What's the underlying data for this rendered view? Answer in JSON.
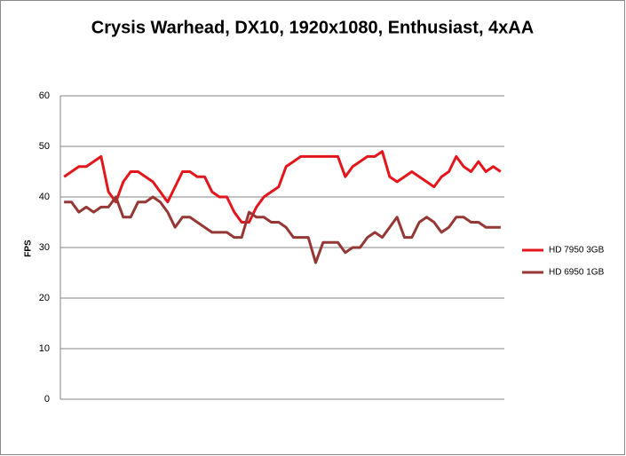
{
  "chart_data": {
    "type": "line",
    "title": "Crysis Warhead, DX10, 1920x1080, Enthusiast, 4xAA",
    "y_label": "FPS",
    "categories": [
      null,
      null,
      null,
      null,
      null,
      null,
      null,
      null,
      null,
      null,
      null,
      null,
      null,
      null,
      null,
      null,
      null,
      null,
      null,
      null,
      null,
      null,
      null,
      null,
      null,
      null,
      null,
      null,
      null,
      null,
      null,
      null,
      null,
      null,
      null,
      null,
      null,
      null,
      null,
      null,
      null,
      null,
      null,
      null,
      null,
      null,
      null,
      null,
      null,
      null,
      null,
      null,
      null,
      null,
      null,
      null,
      null,
      null,
      null,
      null
    ],
    "series": [
      {
        "name": "HD 7950 3GB",
        "color": "#e3161c",
        "values": [
          44,
          45,
          46,
          46,
          47,
          48,
          41,
          39,
          43,
          45,
          45,
          44,
          43,
          41,
          39,
          42,
          45,
          45,
          44,
          44,
          41,
          40,
          40,
          37,
          35,
          35,
          38,
          40,
          41,
          42,
          46,
          47,
          48,
          48,
          48,
          48,
          48,
          48,
          44,
          46,
          47,
          48,
          48,
          49,
          44,
          43,
          44,
          45,
          44,
          43,
          42,
          44,
          45,
          48,
          46,
          45,
          47,
          45,
          46,
          45
        ]
      },
      {
        "name": "HD 6950 1GB",
        "color": "#953735",
        "values": [
          39,
          39,
          37,
          38,
          37,
          38,
          38,
          40,
          36,
          36,
          39,
          39,
          40,
          39,
          37,
          34,
          36,
          36,
          35,
          34,
          33,
          33,
          33,
          32,
          32,
          37,
          36,
          36,
          35,
          35,
          34,
          32,
          32,
          32,
          27,
          31,
          31,
          31,
          29,
          30,
          30,
          32,
          33,
          32,
          34,
          36,
          32,
          32,
          35,
          36,
          35,
          33,
          34,
          36,
          36,
          35,
          35,
          34,
          34,
          34
        ]
      }
    ],
    "ylim": [
      0,
      60
    ],
    "yticks": [
      0,
      10,
      20,
      30,
      40,
      50,
      60
    ],
    "grid": true,
    "legend": "right"
  }
}
